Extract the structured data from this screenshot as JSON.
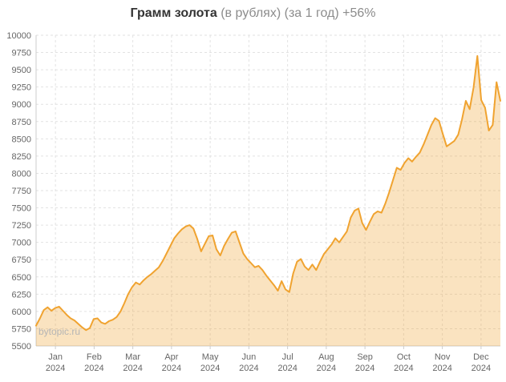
{
  "header": {
    "title": "Грамм золота",
    "subtitle": "(в рублях) (за 1 год) +56%"
  },
  "watermark": "bytopic.ru",
  "chart_data": {
    "type": "area",
    "title": "Грамм золота (в рублях) (за 1 год) +56%",
    "ylabel": "",
    "xlabel": "",
    "ylim": [
      5500,
      10000
    ],
    "ytick_step": 250,
    "grid": true,
    "legend": "none",
    "x_tick_months": [
      "Jan",
      "Feb",
      "Mar",
      "Apr",
      "May",
      "Jun",
      "Jul",
      "Aug",
      "Sep",
      "Oct",
      "Nov",
      "Dec"
    ],
    "x_tick_year": "2024",
    "x_note": "122 points evenly spaced from early Jan 2024 to late Dec 2024",
    "line_color": "#f0a330",
    "fill_color": "rgba(240,163,48,0.30)",
    "grid_color": "#e2e2e2",
    "axis_line_color": "#cccccc",
    "axis_text_color": "#666666",
    "values": [
      5795,
      5900,
      6020,
      6060,
      6010,
      6050,
      6070,
      6010,
      5950,
      5900,
      5870,
      5820,
      5770,
      5730,
      5760,
      5890,
      5900,
      5840,
      5820,
      5860,
      5880,
      5920,
      6000,
      6120,
      6250,
      6350,
      6420,
      6390,
      6450,
      6500,
      6540,
      6590,
      6640,
      6730,
      6840,
      6950,
      7060,
      7130,
      7190,
      7230,
      7250,
      7200,
      7050,
      6870,
      6980,
      7090,
      7100,
      6900,
      6810,
      6950,
      7050,
      7140,
      7160,
      7000,
      6840,
      6760,
      6700,
      6640,
      6660,
      6600,
      6520,
      6450,
      6380,
      6300,
      6440,
      6320,
      6280,
      6550,
      6720,
      6760,
      6650,
      6600,
      6680,
      6600,
      6720,
      6830,
      6900,
      6970,
      7060,
      7000,
      7080,
      7160,
      7360,
      7460,
      7490,
      7280,
      7180,
      7300,
      7410,
      7450,
      7430,
      7560,
      7720,
      7900,
      8080,
      8050,
      8150,
      8220,
      8170,
      8240,
      8300,
      8420,
      8560,
      8700,
      8800,
      8760,
      8570,
      8390,
      8430,
      8470,
      8560,
      8780,
      9050,
      8930,
      9240,
      9700,
      9060,
      8950,
      8620,
      8700,
      9320,
      9050
    ]
  }
}
